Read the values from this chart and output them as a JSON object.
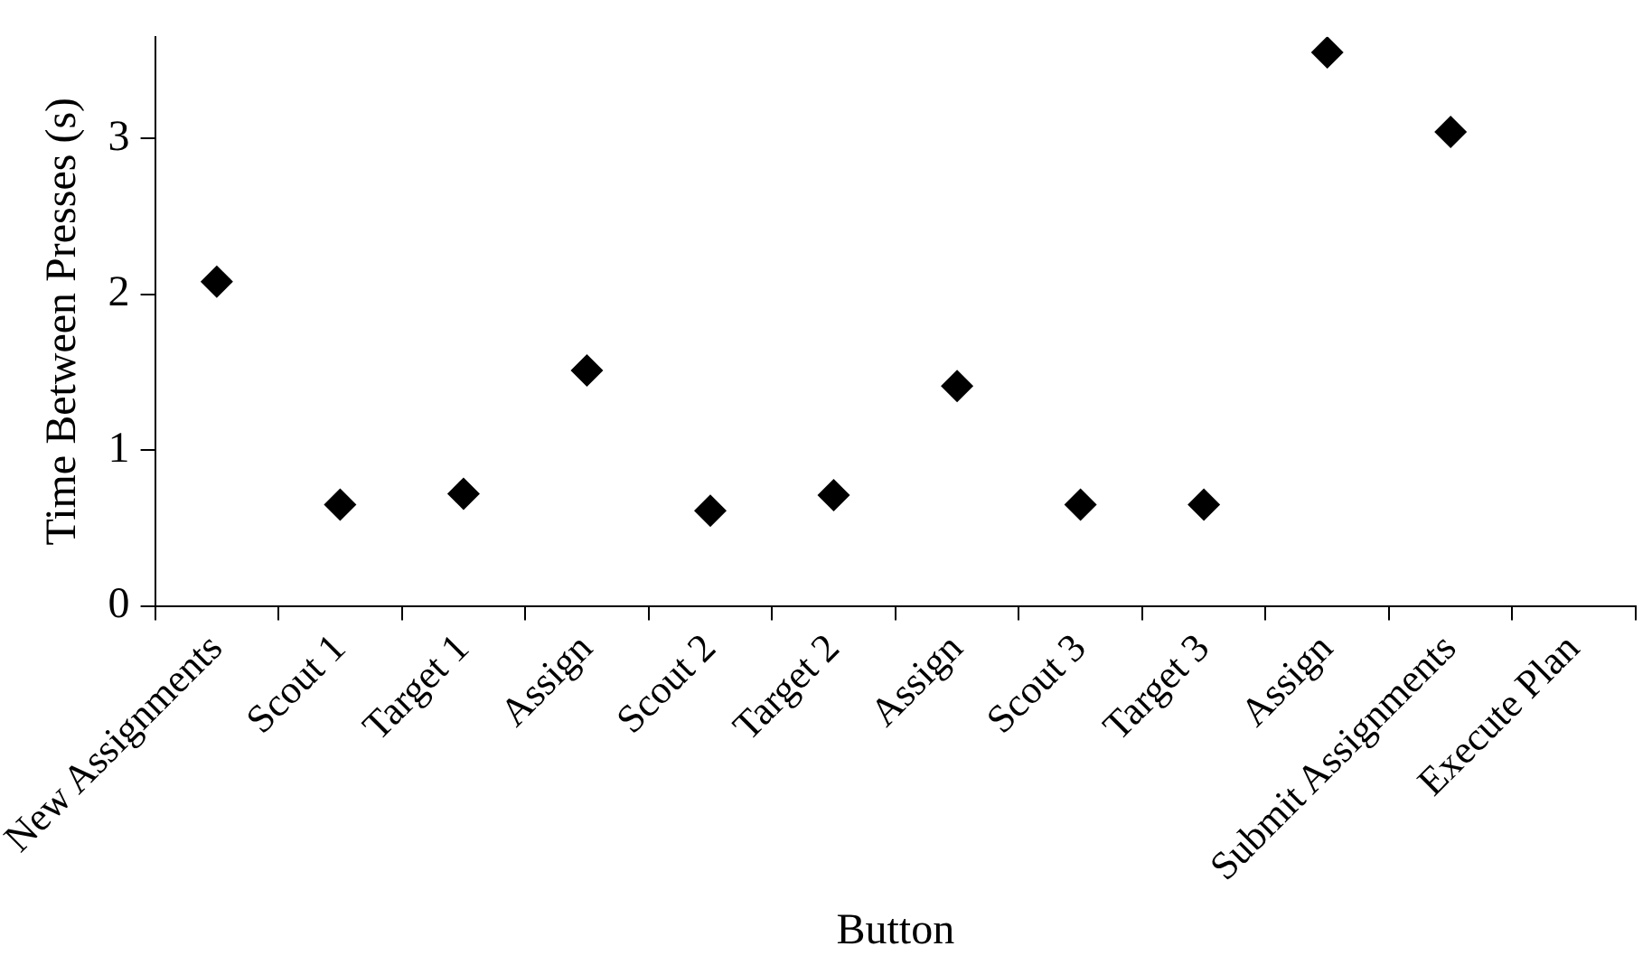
{
  "chart_data": {
    "type": "scatter",
    "xlabel": "Button",
    "ylabel": "Time Between Presses (s)",
    "categories": [
      "New Assignments",
      "Scout 1",
      "Target 1",
      "Assign",
      "Scout 2",
      "Target 2",
      "Assign",
      "Scout 3",
      "Target 3",
      "Assign",
      "Submit Assignments",
      "Execute Plan"
    ],
    "series": [
      {
        "color": "#000000",
        "values": [
          2.08,
          0.65,
          0.72,
          1.51,
          0.61,
          0.71,
          1.41,
          0.65,
          0.65,
          3.55,
          3.04,
          null
        ]
      }
    ],
    "ylim": [
      0,
      3.65
    ],
    "yticks": [
      0,
      1,
      2,
      3
    ],
    "grid": false,
    "legend": false,
    "marker": "diamond"
  }
}
